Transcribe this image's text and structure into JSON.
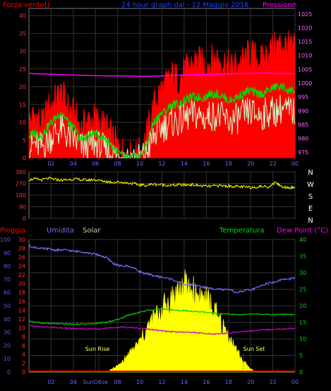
{
  "chart_data": [
    {
      "type": "line",
      "title": "24 hour graph dal - 12 Maggio 2016",
      "left_label": "Forza vento()",
      "right_label": "Pressione",
      "x_ticks": [
        "02",
        "04",
        "06",
        "08",
        "10",
        "12",
        "14",
        "16",
        "18",
        "20",
        "22",
        "00"
      ],
      "y_left_ticks": [
        0,
        5,
        10,
        15,
        20,
        25,
        30,
        35,
        40
      ],
      "y_right_ticks": [
        975,
        980,
        985,
        990,
        995,
        1000,
        1005,
        1010,
        1015,
        1020,
        1025
      ],
      "ylim_left": [
        0,
        42
      ],
      "ylim_right": [
        973,
        1027
      ],
      "grid": true,
      "series": [
        {
          "color": "#ff0000",
          "style": "gust-area",
          "values": [
            10,
            12,
            9,
            14,
            16,
            18,
            14,
            12,
            8,
            10,
            11,
            10,
            8,
            5,
            2,
            1,
            0,
            1,
            5,
            13,
            18,
            20,
            23,
            22,
            24,
            26,
            27,
            26,
            27,
            28,
            27,
            25,
            26,
            27,
            29,
            28,
            27,
            30,
            31,
            32,
            31,
            30
          ]
        },
        {
          "color": "#00dd00",
          "style": "line",
          "values": [
            6,
            7,
            6,
            9,
            11,
            13,
            10,
            8,
            5,
            6,
            7,
            6,
            5,
            3,
            1,
            0,
            0,
            0,
            3,
            9,
            12,
            13,
            15,
            15,
            16,
            17,
            17,
            17,
            18,
            18,
            17,
            16,
            17,
            18,
            19,
            18,
            18,
            19,
            20,
            20,
            19,
            19
          ]
        },
        {
          "color": "#ccffcc",
          "style": "noise-fill",
          "values": [
            3,
            4,
            3,
            5,
            7,
            8,
            6,
            5,
            3,
            3,
            4,
            3,
            2,
            1,
            0,
            0,
            0,
            0,
            1,
            5,
            8,
            9,
            10,
            10,
            11,
            12,
            12,
            11,
            12,
            12,
            11,
            10,
            11,
            12,
            13,
            12,
            12,
            13,
            13,
            14,
            13,
            13
          ]
        },
        {
          "color": "#ff00ff",
          "style": "line-right-axis",
          "values": [
            1003.5,
            1003.3,
            1003.2,
            1003.0,
            1002.8,
            1002.7,
            1002.6,
            1002.6,
            1002.5,
            1002.5,
            1002.6,
            1002.8,
            1003.0,
            1003.1,
            1003.2,
            1003.4,
            1003.5,
            1003.6,
            1003.6,
            1003.5,
            1003.4
          ]
        }
      ]
    },
    {
      "type": "line",
      "left_ticks": [
        0,
        90,
        180,
        270,
        360
      ],
      "ylim": [
        0,
        360
      ],
      "x_ticks": [
        "02",
        "04",
        "06",
        "08",
        "10",
        "12",
        "14",
        "16",
        "18",
        "20",
        "22",
        "00"
      ],
      "compass_labels": [
        "N",
        "W",
        "S",
        "E",
        "N"
      ],
      "series": [
        {
          "color": "#ffff00",
          "values": [
            300,
            305,
            298,
            310,
            302,
            295,
            300,
            305,
            299,
            296,
            300,
            292,
            285,
            280,
            282,
            275,
            270,
            260,
            255,
            265,
            262,
            258,
            255,
            260,
            258,
            262,
            255,
            250,
            248,
            255,
            252,
            250,
            246,
            244,
            240,
            243,
            248,
            245,
            280,
            245,
            240,
            238
          ]
        }
      ]
    },
    {
      "type": "line",
      "labels": {
        "pioggia": "Pioggia",
        "umidita": "Umidita",
        "solar": "Solar",
        "temperatura": "Temperatura",
        "dew_point": "Dew Point (°C)",
        "sun_rise": "Sun Rise",
        "sun_set": "Sun Set"
      },
      "x_ticks": [
        "02",
        "04",
        "SunO6se",
        "08",
        "10",
        "12",
        "14",
        "16",
        "18",
        "20",
        "22",
        "00"
      ],
      "pioggia_ticks": [
        0,
        10,
        20,
        30,
        40,
        50,
        60,
        70,
        80,
        90,
        100
      ],
      "umidita_ticks": [
        0,
        2,
        4,
        6,
        8,
        10,
        12,
        14,
        16,
        18,
        20,
        22,
        24,
        26,
        28,
        30
      ],
      "right_ticks": [
        0,
        5,
        10,
        15,
        20,
        25,
        30,
        35,
        40
      ],
      "ylim_right": [
        0,
        40
      ],
      "series": [
        {
          "color": "#7070ff",
          "axis": "umidita",
          "values": [
            95,
            94,
            93,
            93,
            92,
            92,
            92,
            91,
            91,
            90,
            89,
            88,
            86,
            82,
            80,
            80,
            79,
            76,
            74,
            73,
            72,
            71,
            70,
            68,
            66,
            66,
            65,
            64,
            63,
            63,
            62,
            62,
            60,
            61,
            62,
            63,
            66,
            67,
            68,
            70,
            70,
            71
          ]
        },
        {
          "color": "#00cc00",
          "axis": "right",
          "values": [
            15.5,
            15,
            14.8,
            14.7,
            14.6,
            14.5,
            14.5,
            14.4,
            14.5,
            14.5,
            14.6,
            14.8,
            15,
            15.5,
            16,
            17,
            17.5,
            18,
            18.5,
            18.8,
            19,
            19,
            18.8,
            18.6,
            18.5,
            18.3,
            18.2,
            18,
            17.8,
            17.6,
            17.5,
            17.4,
            17.3,
            17.3,
            17.4,
            17.5,
            17.4,
            17.3,
            17.3,
            17.4,
            17.3,
            17.2
          ]
        },
        {
          "color": "#cc00cc",
          "axis": "right",
          "values": [
            14,
            13.8,
            13.6,
            13.5,
            13.4,
            13.3,
            13.2,
            13.1,
            13,
            13,
            13,
            13.1,
            13.2,
            13.4,
            13.5,
            13.5,
            13.4,
            13.2,
            13,
            12.8,
            12.5,
            12.3,
            12.2,
            12.1,
            12,
            12,
            11.8,
            11.6,
            11.5,
            11.5,
            11.6,
            11.8,
            12,
            12.2,
            12.4,
            12.5,
            12.7,
            12.8,
            13,
            13,
            13.1,
            13.2
          ]
        },
        {
          "color": "#ffff00",
          "axis": "right",
          "style": "solar-area",
          "values": [
            0,
            0,
            0,
            0,
            0,
            0,
            0,
            0,
            0,
            0,
            0,
            0,
            0,
            1,
            2,
            4,
            6,
            8,
            11,
            14,
            16,
            18,
            20,
            22,
            23,
            22,
            21,
            20,
            18,
            15,
            12,
            9,
            6,
            3,
            1,
            0,
            0,
            0,
            0,
            0,
            0,
            0
          ]
        },
        {
          "color": "#ff0000",
          "axis": "pioggia",
          "values": [
            0,
            0,
            0,
            0,
            0,
            0,
            0,
            0,
            0,
            0,
            0,
            0,
            0,
            0,
            0,
            0,
            0,
            0,
            0,
            0,
            0,
            0,
            0,
            0,
            0,
            0,
            0,
            0,
            0,
            0,
            0,
            0,
            0,
            0,
            0,
            0,
            0,
            0,
            0,
            0,
            0,
            0
          ]
        }
      ]
    }
  ]
}
